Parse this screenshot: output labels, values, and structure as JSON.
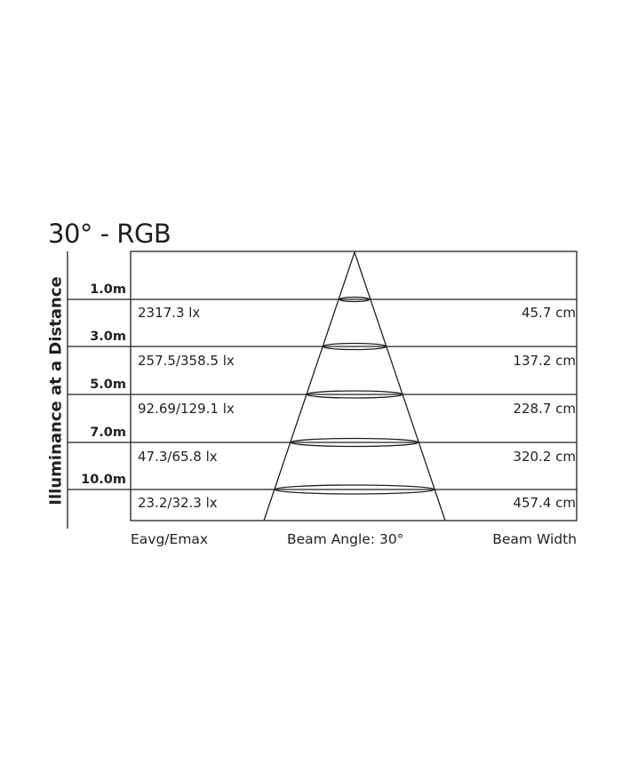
{
  "title": "30° - RGB",
  "y_axis_label": "Illuminance at a Distance",
  "rows": [
    {
      "distance": "1.0m",
      "illuminance": "2317.3 lx",
      "beam_width": "45.7 cm"
    },
    {
      "distance": "3.0m",
      "illuminance": "257.5/358.5 lx",
      "beam_width": "137.2 cm"
    },
    {
      "distance": "5.0m",
      "illuminance": "92.69/129.1 lx",
      "beam_width": "228.7 cm"
    },
    {
      "distance": "7.0m",
      "illuminance": "47.3/65.8 lx",
      "beam_width": "320.2 cm"
    },
    {
      "distance": "10.0m",
      "illuminance": "23.2/32.3 lx",
      "beam_width": "457.4 cm"
    }
  ],
  "footer": {
    "left": "Eavg/Emax",
    "center": "Beam Angle: 30°",
    "right": "Beam Width"
  },
  "line_color": "#231f20"
}
